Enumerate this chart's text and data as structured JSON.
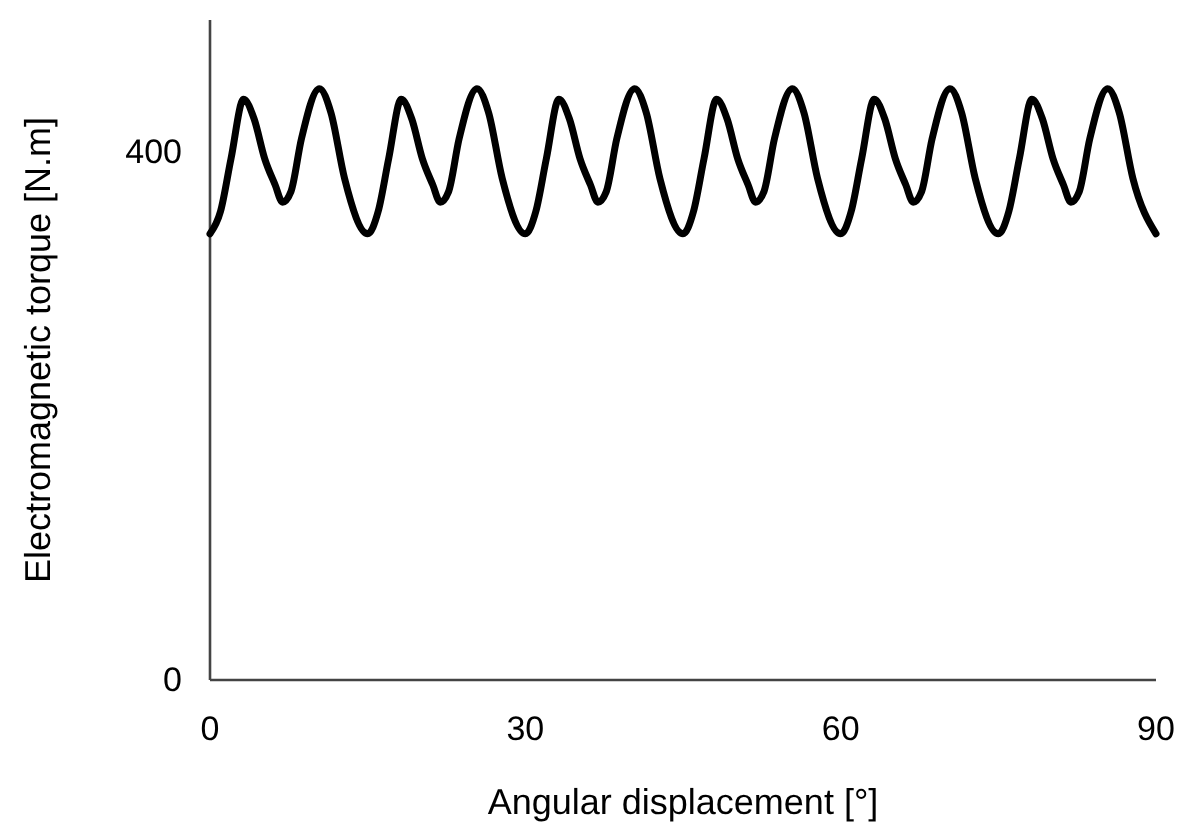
{
  "chart_data": {
    "type": "line",
    "xlabel": "Angular displacement [°]",
    "ylabel": "Electromagnetic torque [N.m]",
    "xlim": [
      0,
      90
    ],
    "xticks": [
      0,
      30,
      60,
      90
    ],
    "ylim": [
      0,
      500
    ],
    "yticks": [
      0,
      400
    ],
    "grid": false,
    "marker": "none",
    "line_style": "solid",
    "series": [
      {
        "color": "#000000",
        "x": [
          0,
          1,
          2,
          3.2,
          4.2,
          5.2,
          6.2,
          6.9,
          7.7,
          8.7,
          10.4,
          11.5,
          12.8,
          15,
          16,
          17,
          18.2,
          19.2,
          20.2,
          21.2,
          21.9,
          22.7,
          23.7,
          25.4,
          26.5,
          27.8,
          30,
          31,
          32,
          33.2,
          34.2,
          35.2,
          36.2,
          36.9,
          37.7,
          38.7,
          40.4,
          41.5,
          42.8,
          45,
          46,
          47,
          48.2,
          49.2,
          50.2,
          51.2,
          51.9,
          52.7,
          53.7,
          55.4,
          56.5,
          57.8,
          60,
          61,
          62,
          63.2,
          64.2,
          65.2,
          66.2,
          66.9,
          67.7,
          68.7,
          70.4,
          71.5,
          72.8,
          75,
          76,
          77,
          78.2,
          79.2,
          80.2,
          81.2,
          81.9,
          82.7,
          83.7,
          85.4,
          86.5,
          87.8,
          90
        ],
        "values": [
          338,
          355,
          395,
          440,
          425,
          395,
          375,
          362,
          370,
          410,
          448,
          430,
          380,
          338,
          355,
          395,
          440,
          425,
          395,
          375,
          362,
          370,
          410,
          448,
          430,
          380,
          338,
          355,
          395,
          440,
          425,
          395,
          375,
          362,
          370,
          410,
          448,
          430,
          380,
          338,
          355,
          395,
          440,
          425,
          395,
          375,
          362,
          370,
          410,
          448,
          430,
          380,
          338,
          355,
          395,
          440,
          425,
          395,
          375,
          362,
          370,
          410,
          448,
          430,
          380,
          338,
          355,
          395,
          440,
          425,
          395,
          375,
          362,
          370,
          410,
          448,
          430,
          380,
          338
        ]
      }
    ]
  }
}
